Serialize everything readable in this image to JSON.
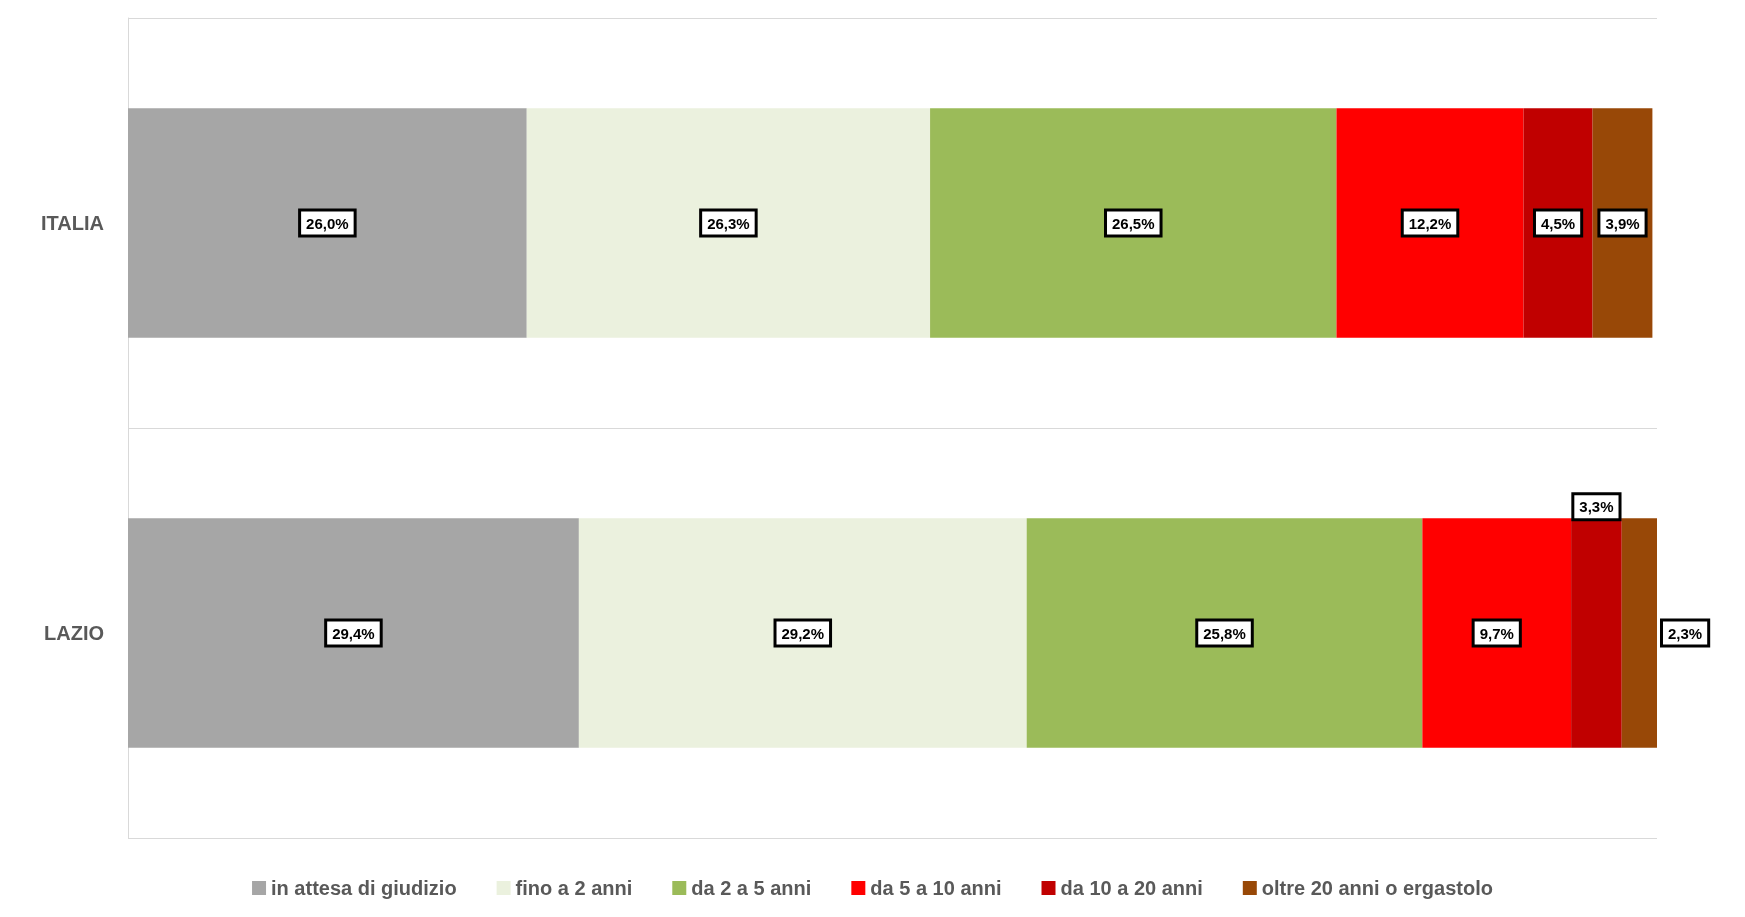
{
  "chart_data": {
    "type": "bar",
    "orientation": "horizontal",
    "stacked": true,
    "categories": [
      "ITALIA",
      "LAZIO"
    ],
    "series": [
      {
        "name": "in attesa di giudizio",
        "color": "#a6a6a6",
        "values": [
          26.0,
          29.4
        ],
        "value_labels": [
          "26,0%",
          "29,4%"
        ]
      },
      {
        "name": "fino a 2 anni",
        "color": "#ebf1de",
        "values": [
          26.3,
          29.2
        ],
        "value_labels": [
          "26,3%",
          "29,2%"
        ]
      },
      {
        "name": "da 2 a 5 anni",
        "color": "#9bbb59",
        "values": [
          26.5,
          25.8
        ],
        "value_labels": [
          "26,5%",
          "25,8%"
        ]
      },
      {
        "name": "da 5 a 10 anni",
        "color": "#ff0000",
        "values": [
          12.2,
          9.7
        ],
        "value_labels": [
          "12,2%",
          "9,7%"
        ]
      },
      {
        "name": "da 10 a 20 anni",
        "color": "#c00000",
        "values": [
          4.5,
          3.3
        ],
        "value_labels": [
          "4,5%",
          "3,3%"
        ]
      },
      {
        "name": "oltre 20 anni o ergastolo",
        "color": "#984807",
        "values": [
          3.9,
          2.3
        ],
        "value_labels": [
          "3,9%",
          "2,3%"
        ]
      }
    ],
    "legend": "bottom"
  }
}
